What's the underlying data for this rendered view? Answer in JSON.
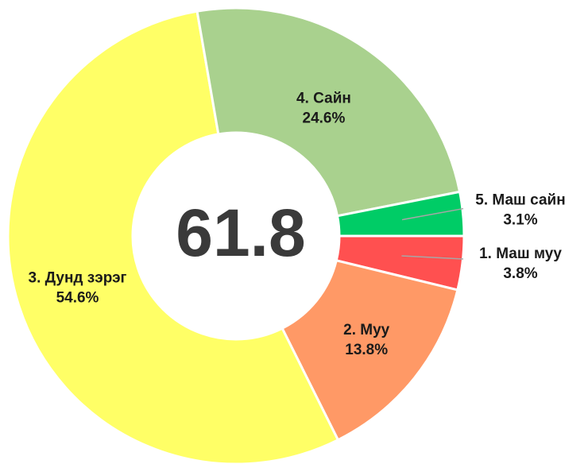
{
  "chart_data": {
    "type": "donut",
    "categories": [
      "1. Маш муу",
      "2. Муу",
      "3. Дунд зэрэг",
      "4. Сайн",
      "5. Маш сайн"
    ],
    "values": [
      3.8,
      13.8,
      54.6,
      24.6,
      3.1
    ],
    "value_labels": [
      "3.8%",
      "13.8%",
      "54.6%",
      "24.6%",
      "3.1%"
    ],
    "colors": [
      "#ff5050",
      "#ff9966",
      "#ffff66",
      "#a9d18e",
      "#00cc66"
    ],
    "center_text": 61.8
  }
}
